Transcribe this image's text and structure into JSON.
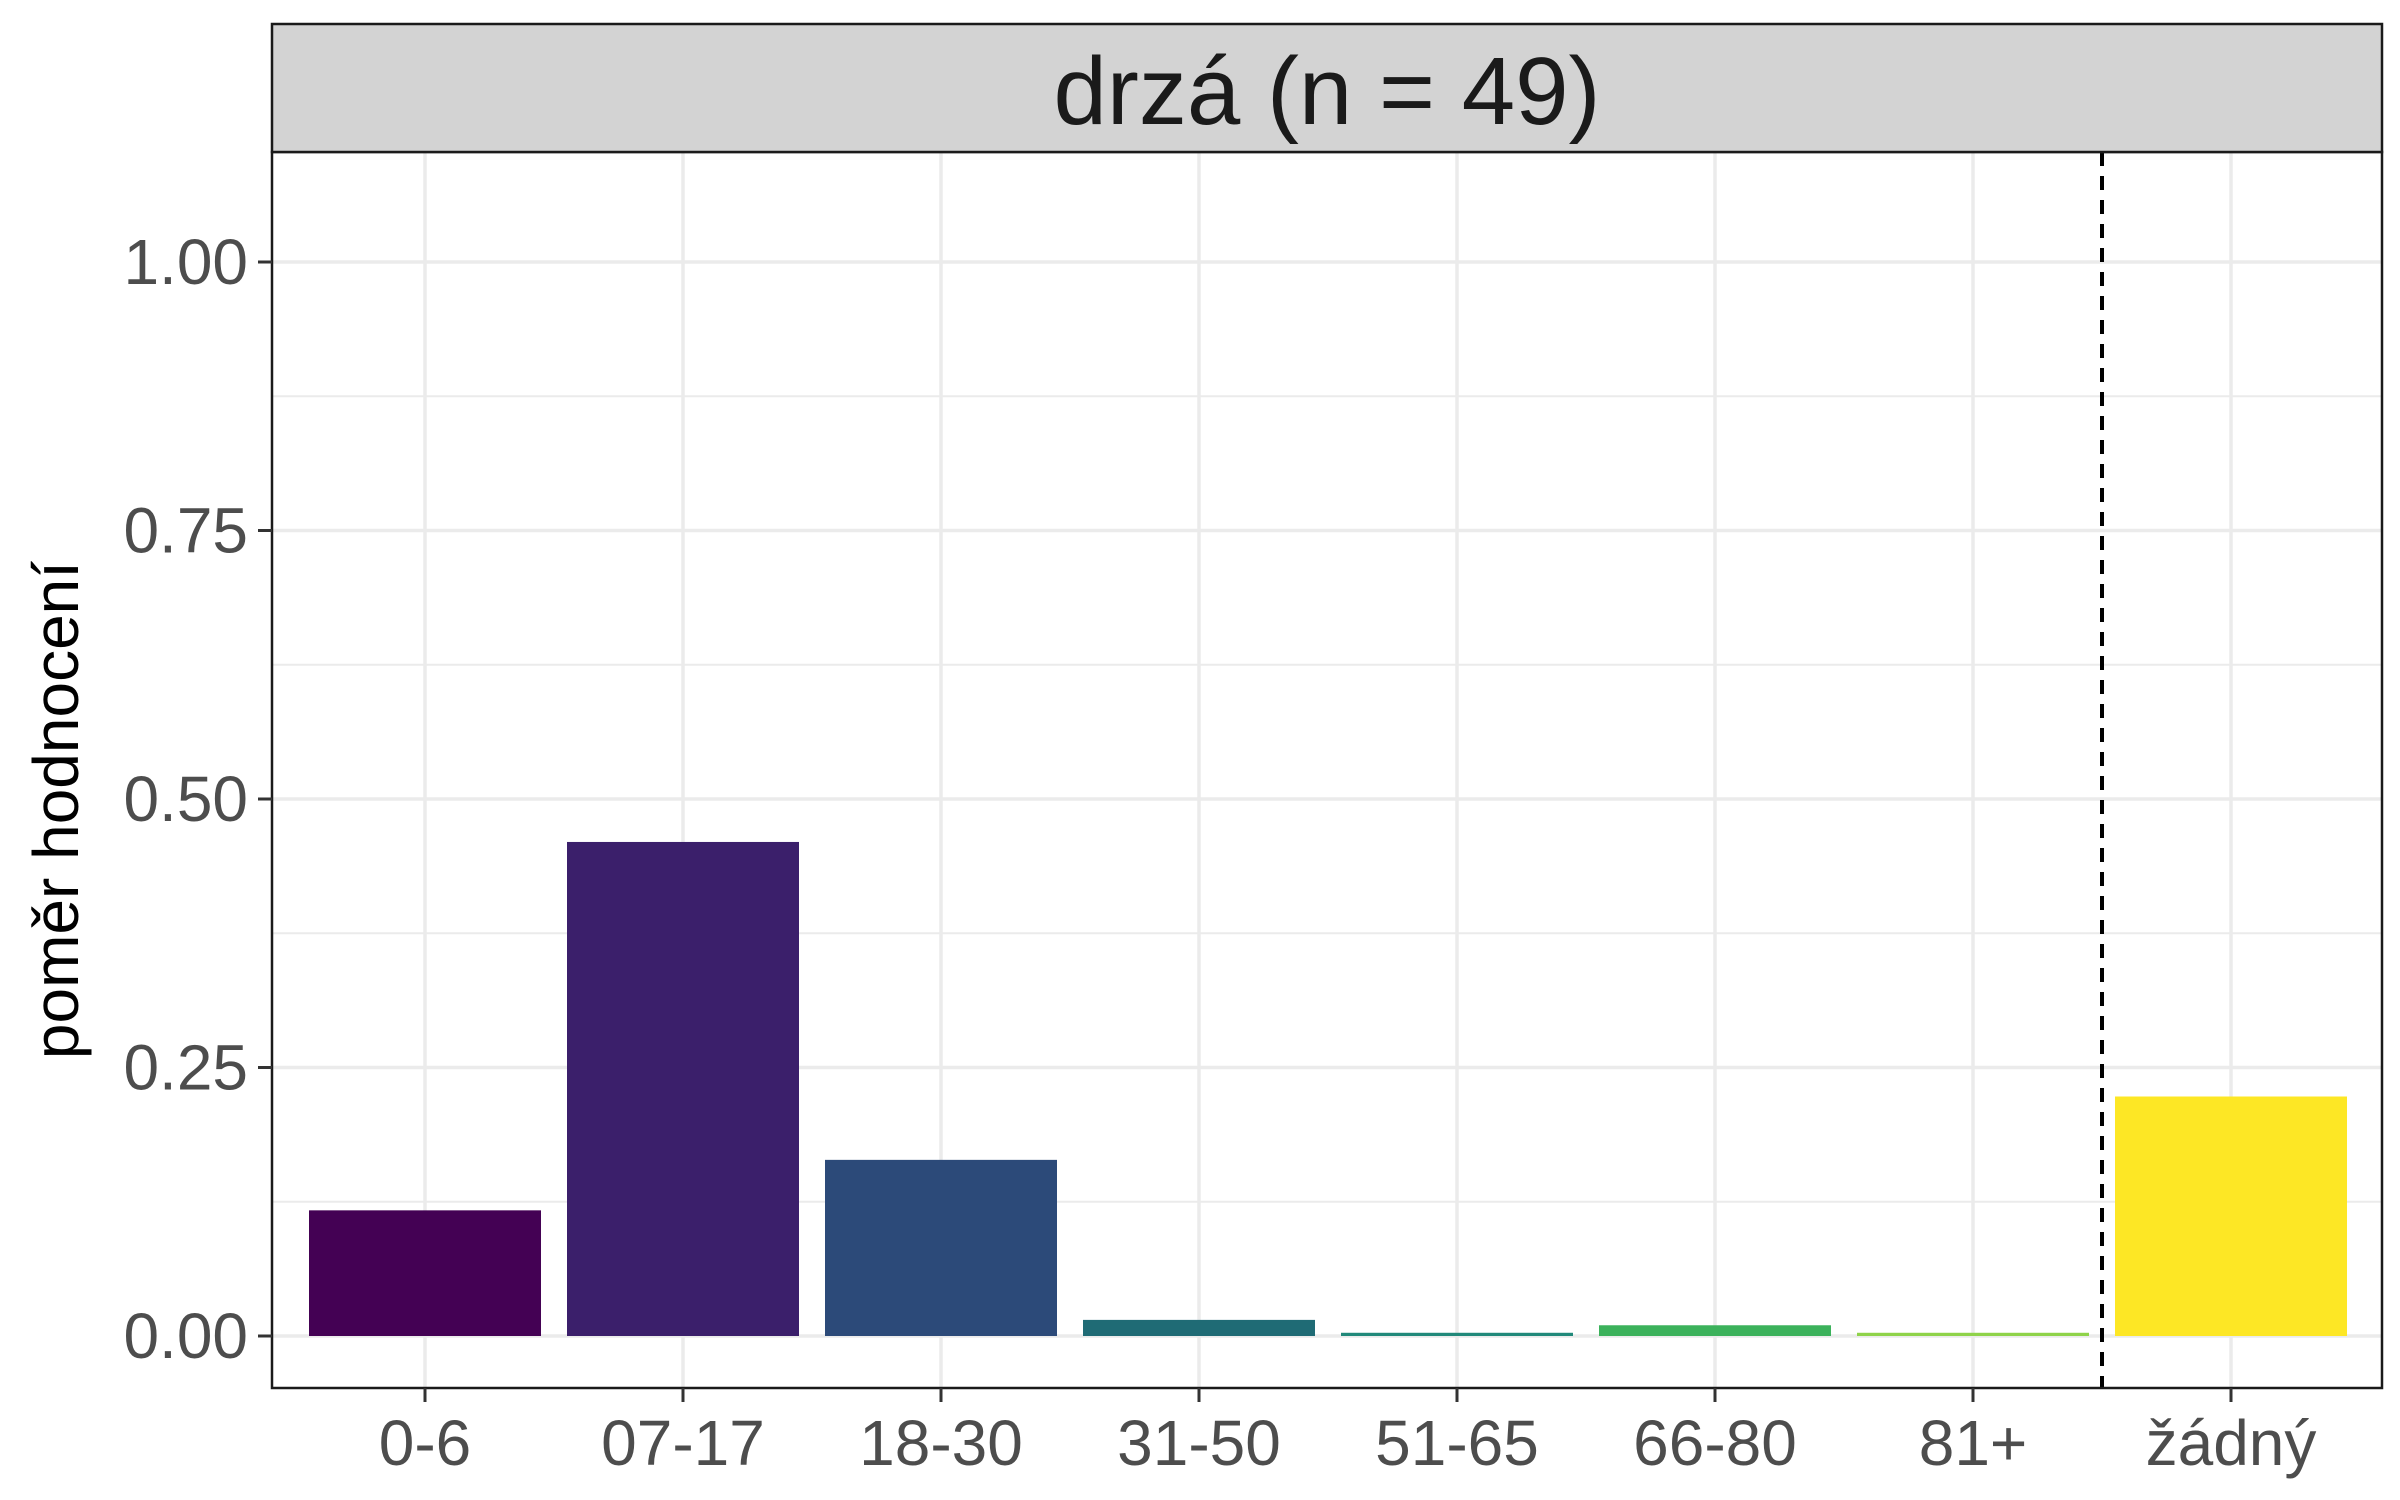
{
  "chart_data": {
    "type": "bar",
    "facet_title": "drzá (n = 49)",
    "ylabel": "poměr hodnocení",
    "xlabel": "",
    "ylim": [
      0,
      1.1
    ],
    "y_ticks": [
      "0.00",
      "0.25",
      "0.50",
      "0.75",
      "1.00"
    ],
    "y_tick_values": [
      0,
      0.25,
      0.5,
      0.75,
      1.0
    ],
    "categories": [
      "0-6",
      "07-17",
      "18-30",
      "31-50",
      "51-65",
      "66-80",
      "81+",
      "žádný"
    ],
    "values": [
      0.117,
      0.46,
      0.164,
      0.015,
      0.003,
      0.01,
      0.003,
      0.223
    ],
    "colors": [
      "#440154",
      "#3b1f6b",
      "#2c4a79",
      "#1f6b75",
      "#21897a",
      "#3cb25b",
      "#8fd34a",
      "#fde725"
    ],
    "separator_after_index": 6,
    "grid": true,
    "legend": "none"
  }
}
